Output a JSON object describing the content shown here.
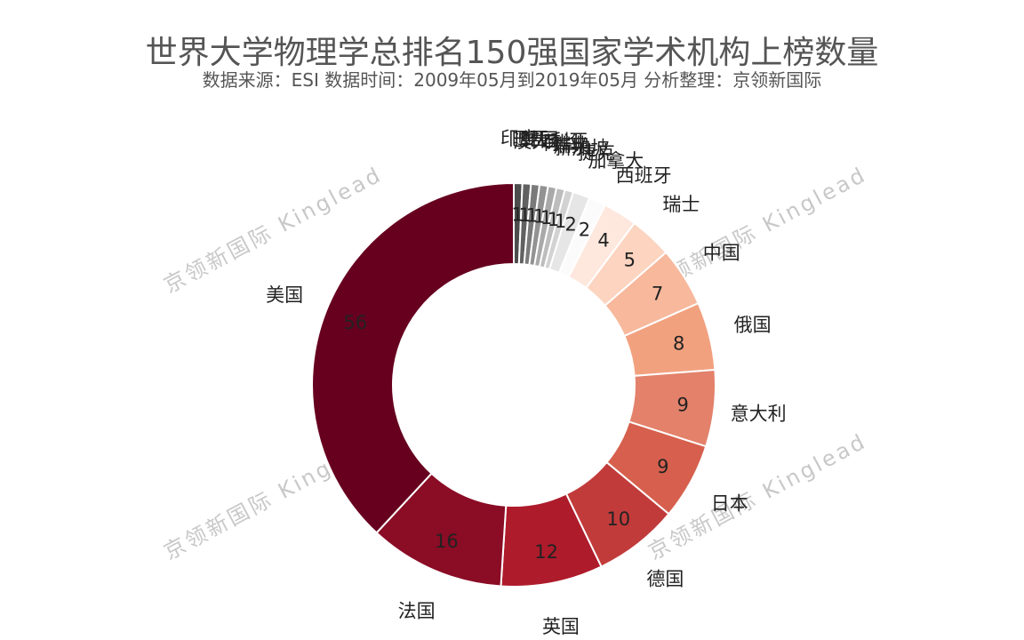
{
  "title": "世界大学物理学总排名150强国家学术机构上榜数量",
  "subtitle": "数据来源：ESI 数据时间：2009年05月到2019年05月 分析整理：京领新国际",
  "watermark": "京领新国际 Kinglead",
  "chart_data": {
    "type": "pie",
    "variant": "donut",
    "title": "世界大学物理学总排名150强国家学术机构上榜数量",
    "subtitle": "数据来源：ESI 数据时间：2009年05月到2019年05月 分析整理：京领新国际",
    "start": "12 o'clock, clockwise",
    "categories": [
      "印度",
      "巴西",
      "韩国",
      "澳大利亚",
      "荷兰",
      "瑞典",
      "新加坡",
      "捷克",
      "加拿大",
      "西班牙",
      "瑞士",
      "中国",
      "俄国",
      "意大利",
      "日本",
      "德国",
      "英国",
      "法国",
      "美国"
    ],
    "values": [
      1,
      1,
      1,
      1,
      1,
      1,
      1,
      2,
      2,
      4,
      5,
      7,
      8,
      9,
      9,
      10,
      12,
      16,
      56
    ],
    "colors": [
      "#4d4d4d",
      "#616161",
      "#7a7a7a",
      "#929292",
      "#a9a9a9",
      "#bdbdbd",
      "#d2d2d2",
      "#e6e6e6",
      "#fbfbfb",
      "#fee8de",
      "#fcd4c0",
      "#f7b89c",
      "#f2a17f",
      "#e3816a",
      "#d6604d",
      "#c23b3b",
      "#ae1b2b",
      "#8a0c25",
      "#67001f"
    ],
    "note": "Labels of the smallest slices overlap in the original and are partially illegible."
  }
}
